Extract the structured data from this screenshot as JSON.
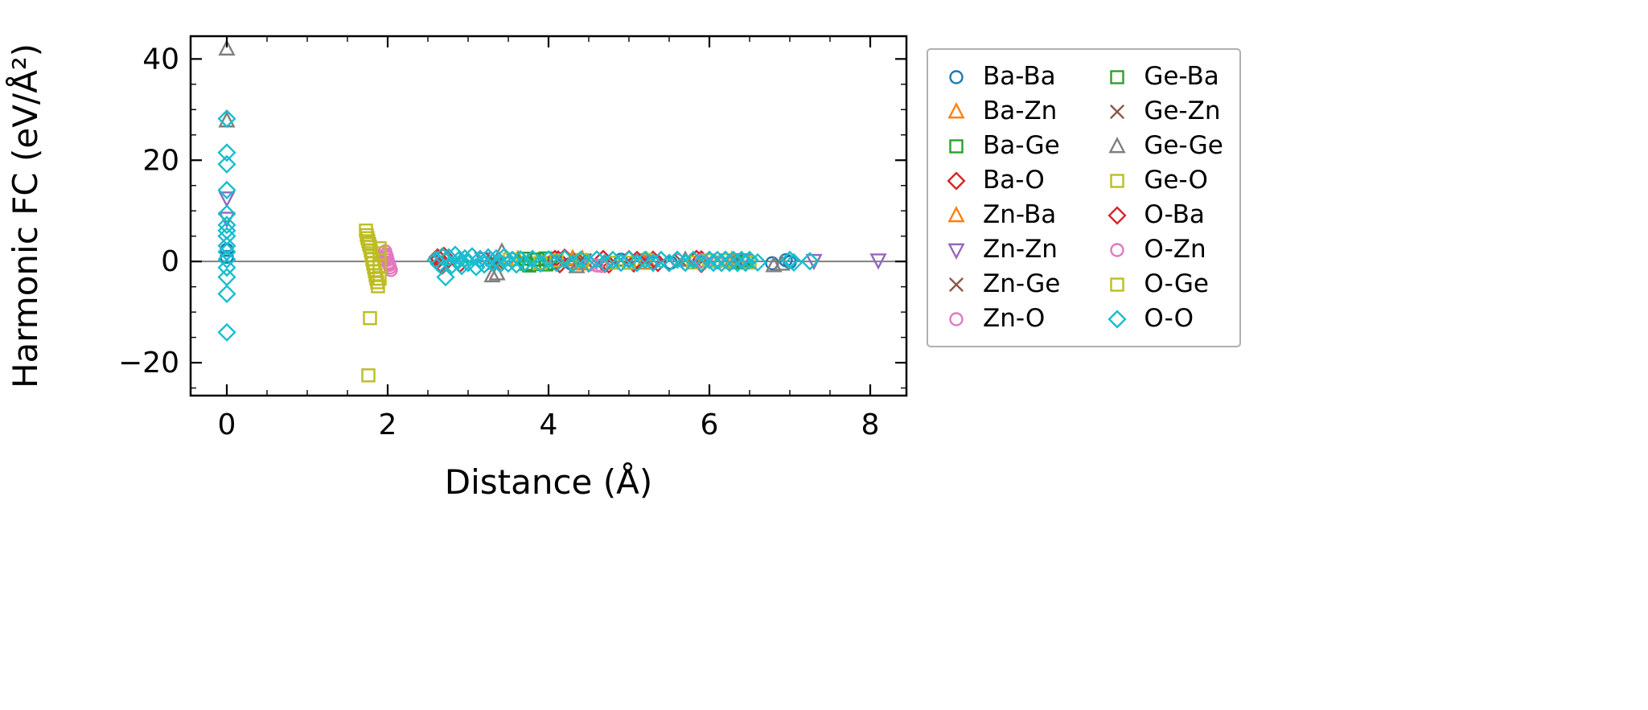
{
  "figure": {
    "background": "#ffffff",
    "axes_color": "#000000",
    "zero_line_color": "#808080",
    "legend_border_color": "#b0b0b0"
  },
  "chart_data": {
    "type": "scatter",
    "title": "",
    "xlabel": "Distance (Å)",
    "ylabel": "Harmonic FC (eV/Å²)",
    "xlim": [
      -0.45,
      8.45
    ],
    "ylim": [
      -26.5,
      44.5
    ],
    "xticks": [
      0,
      2,
      4,
      6,
      8
    ],
    "yticks": [
      -20,
      0,
      20,
      40
    ],
    "xticklabels": [
      "0",
      "2",
      "4",
      "6",
      "8"
    ],
    "yticklabels": [
      "−20",
      "0",
      "20",
      "40"
    ],
    "x_minor_step": 0.5,
    "y_minor_step": 5,
    "grid": false,
    "zero_line": true,
    "legend_position": "right",
    "legend_columns": 2,
    "series": [
      {
        "name": "Ba-Ba",
        "marker": "circle",
        "color": "#1f77b4",
        "points": [
          [
            0,
            2.3
          ],
          [
            0,
            0.9
          ],
          [
            4.28,
            -0.4
          ],
          [
            4.9,
            0.35
          ],
          [
            5.52,
            -0.25
          ],
          [
            6.2,
            0.3
          ],
          [
            6.78,
            -0.35
          ],
          [
            6.95,
            0.25
          ],
          [
            7.0,
            -0.15
          ]
        ]
      },
      {
        "name": "Ba-Zn",
        "marker": "triangle-up",
        "color": "#ff7f0e",
        "points": [
          [
            3.62,
            0.45
          ],
          [
            4.3,
            0.6
          ],
          [
            4.36,
            -0.45
          ],
          [
            4.42,
            0.5
          ],
          [
            5.18,
            -0.3
          ],
          [
            5.22,
            0.25
          ],
          [
            6.28,
            0.3
          ],
          [
            6.35,
            -0.25
          ]
        ]
      },
      {
        "name": "Ba-Ge",
        "marker": "square",
        "color": "#2ca02c",
        "points": [
          [
            3.7,
            0.55
          ],
          [
            3.76,
            -0.8
          ],
          [
            3.82,
            0.35
          ],
          [
            3.9,
            -0.5
          ],
          [
            3.96,
            0.6
          ],
          [
            4.02,
            -0.35
          ],
          [
            6.4,
            0.25
          ],
          [
            6.46,
            -0.2
          ]
        ]
      },
      {
        "name": "Ba-O",
        "marker": "diamond",
        "color": "#d62728",
        "points": [
          [
            2.62,
            0.8
          ],
          [
            2.66,
            -0.6
          ],
          [
            2.7,
            1.1
          ],
          [
            2.74,
            0.3
          ],
          [
            2.9,
            -0.45
          ],
          [
            4.08,
            0.5
          ],
          [
            4.14,
            -0.55
          ],
          [
            4.2,
            0.75
          ],
          [
            4.5,
            -0.4
          ],
          [
            4.68,
            0.5
          ],
          [
            4.75,
            -0.6
          ],
          [
            5.0,
            0.45
          ],
          [
            5.06,
            -0.4
          ],
          [
            5.3,
            0.35
          ],
          [
            5.5,
            -0.3
          ],
          [
            5.84,
            0.5
          ],
          [
            5.9,
            -0.5
          ],
          [
            6.0,
            0.3
          ]
        ]
      },
      {
        "name": "Zn-Ba",
        "marker": "triangle-up",
        "color": "#ff7f0e",
        "points": [
          [
            4.3,
            0.35
          ],
          [
            4.4,
            -0.3
          ],
          [
            5.2,
            0.2
          ],
          [
            6.3,
            -0.2
          ]
        ]
      },
      {
        "name": "Zn-Zn",
        "marker": "triangle-down",
        "color": "#9467bd",
        "points": [
          [
            0,
            12.5
          ],
          [
            0,
            8.5
          ],
          [
            3.18,
            0.5
          ],
          [
            5.3,
            -0.3
          ],
          [
            6.42,
            0.25
          ],
          [
            7.3,
            0.15
          ],
          [
            8.1,
            0.25
          ]
        ]
      },
      {
        "name": "Zn-Ge",
        "marker": "x",
        "color": "#8c564b",
        "points": [
          [
            3.3,
            0.4
          ],
          [
            3.36,
            -0.35
          ],
          [
            4.4,
            0.3
          ],
          [
            5.6,
            -0.25
          ],
          [
            6.3,
            0.2
          ]
        ]
      },
      {
        "name": "Zn-O",
        "marker": "circle",
        "color": "#e377c2",
        "points": [
          [
            1.97,
            2.0
          ],
          [
            1.98,
            1.4
          ],
          [
            1.99,
            0.8
          ],
          [
            2.0,
            0.3
          ],
          [
            2.01,
            -0.2
          ],
          [
            2.02,
            -0.7
          ],
          [
            2.03,
            -1.2
          ],
          [
            2.04,
            -1.7
          ],
          [
            4.6,
            -0.8
          ],
          [
            5.6,
            0.25
          ],
          [
            6.1,
            -0.2
          ]
        ]
      },
      {
        "name": "Ge-Ba",
        "marker": "square",
        "color": "#2ca02c",
        "points": [
          [
            3.72,
            -0.45
          ],
          [
            3.86,
            0.4
          ],
          [
            3.97,
            -0.6
          ],
          [
            6.42,
            -0.15
          ]
        ]
      },
      {
        "name": "Ge-Zn",
        "marker": "x",
        "color": "#8c564b",
        "points": [
          [
            3.32,
            -0.4
          ],
          [
            4.45,
            0.25
          ],
          [
            5.64,
            0.2
          ],
          [
            6.36,
            -0.2
          ]
        ]
      },
      {
        "name": "Ge-Ge",
        "marker": "triangle-up",
        "color": "#7f7f7f",
        "points": [
          [
            0,
            42.0
          ],
          [
            0,
            27.8
          ],
          [
            3.3,
            -2.8
          ],
          [
            3.36,
            -2.4
          ],
          [
            3.42,
            1.9
          ],
          [
            4.35,
            -1.0
          ],
          [
            5.7,
            0.3
          ],
          [
            6.8,
            -0.8
          ],
          [
            6.9,
            -0.5
          ]
        ]
      },
      {
        "name": "Ge-O",
        "marker": "square",
        "color": "#bcbd22",
        "points": [
          [
            1.73,
            6.1
          ],
          [
            1.74,
            5.2
          ],
          [
            1.75,
            4.6
          ],
          [
            1.76,
            4.0
          ],
          [
            1.77,
            3.4
          ],
          [
            1.78,
            2.9
          ],
          [
            1.79,
            2.1
          ],
          [
            1.8,
            1.2
          ],
          [
            1.81,
            0.4
          ],
          [
            1.82,
            -0.4
          ],
          [
            1.83,
            -1.1
          ],
          [
            1.84,
            -1.9
          ],
          [
            1.85,
            -2.7
          ],
          [
            1.86,
            -3.4
          ],
          [
            1.87,
            -4.1
          ],
          [
            1.88,
            -4.9
          ],
          [
            1.78,
            -11.2
          ],
          [
            1.76,
            -22.5
          ],
          [
            3.52,
            0.4
          ],
          [
            3.9,
            -0.3
          ],
          [
            4.42,
            0.3
          ],
          [
            4.8,
            -0.25
          ],
          [
            5.2,
            0.3
          ],
          [
            5.8,
            -0.2
          ],
          [
            6.2,
            0.25
          ],
          [
            6.5,
            -0.2
          ]
        ]
      },
      {
        "name": "O-Ba",
        "marker": "diamond",
        "color": "#d62728",
        "points": [
          [
            2.64,
            0.5
          ],
          [
            2.68,
            -0.8
          ],
          [
            4.12,
            0.4
          ],
          [
            4.7,
            -0.5
          ],
          [
            5.1,
            0.3
          ],
          [
            5.36,
            -0.3
          ],
          [
            5.9,
            0.4
          ]
        ]
      },
      {
        "name": "O-Zn",
        "marker": "circle",
        "color": "#e377c2",
        "points": [
          [
            1.99,
            1.0
          ],
          [
            2.01,
            -0.5
          ],
          [
            4.52,
            -0.6
          ],
          [
            4.66,
            -0.9
          ],
          [
            5.9,
            0.2
          ]
        ]
      },
      {
        "name": "O-Ge",
        "marker": "square",
        "color": "#bcbd22",
        "points": [
          [
            1.9,
            2.6
          ],
          [
            1.9,
            1.6
          ],
          [
            1.9,
            -0.9
          ],
          [
            1.9,
            -3.4
          ],
          [
            4.1,
            0.2
          ],
          [
            5.0,
            -0.25
          ],
          [
            6.0,
            0.2
          ]
        ]
      },
      {
        "name": "O-O",
        "marker": "diamond",
        "color": "#17becf",
        "points": [
          [
            0,
            28.2
          ],
          [
            0,
            21.5
          ],
          [
            0,
            19.2
          ],
          [
            0,
            14.1
          ],
          [
            0,
            9.4
          ],
          [
            0,
            7.2
          ],
          [
            0,
            6.1
          ],
          [
            0,
            5.0
          ],
          [
            0,
            3.1
          ],
          [
            0,
            1.9
          ],
          [
            0,
            0.4
          ],
          [
            0,
            -1.2
          ],
          [
            0,
            -3.1
          ],
          [
            0,
            -6.4
          ],
          [
            0,
            -14.0
          ],
          [
            2.6,
            0.3
          ],
          [
            2.64,
            -0.5
          ],
          [
            2.68,
            1.0
          ],
          [
            2.72,
            -3.1
          ],
          [
            2.76,
            0.8
          ],
          [
            2.8,
            -0.7
          ],
          [
            2.84,
            1.3
          ],
          [
            2.88,
            0.2
          ],
          [
            2.92,
            -0.9
          ],
          [
            2.96,
            0.6
          ],
          [
            3.0,
            -0.3
          ],
          [
            3.05,
            1.0
          ],
          [
            3.1,
            -1.1
          ],
          [
            3.15,
            0.5
          ],
          [
            3.2,
            -0.6
          ],
          [
            3.25,
            0.8
          ],
          [
            3.3,
            -0.2
          ],
          [
            3.35,
            0.6
          ],
          [
            3.4,
            -0.5
          ],
          [
            3.45,
            0.9
          ],
          [
            3.5,
            -0.4
          ],
          [
            3.55,
            0.3
          ],
          [
            3.6,
            -0.6
          ],
          [
            3.65,
            0.4
          ],
          [
            3.7,
            -0.3
          ],
          [
            3.8,
            0.5
          ],
          [
            3.9,
            -0.4
          ],
          [
            4.0,
            0.4
          ],
          [
            4.1,
            -0.3
          ],
          [
            4.2,
            0.5
          ],
          [
            4.3,
            -0.4
          ],
          [
            4.4,
            0.3
          ],
          [
            4.5,
            -0.3
          ],
          [
            4.6,
            0.4
          ],
          [
            4.7,
            -0.3
          ],
          [
            4.8,
            0.3
          ],
          [
            4.9,
            -0.25
          ],
          [
            5.0,
            0.35
          ],
          [
            5.1,
            -0.3
          ],
          [
            5.2,
            0.3
          ],
          [
            5.3,
            -0.25
          ],
          [
            5.4,
            0.3
          ],
          [
            5.5,
            -0.3
          ],
          [
            5.6,
            0.35
          ],
          [
            5.7,
            -0.25
          ],
          [
            5.8,
            0.3
          ],
          [
            5.9,
            -0.3
          ],
          [
            6.0,
            0.3
          ],
          [
            6.05,
            -0.25
          ],
          [
            6.1,
            0.3
          ],
          [
            6.15,
            -0.3
          ],
          [
            6.2,
            0.35
          ],
          [
            6.25,
            -0.25
          ],
          [
            6.3,
            0.3
          ],
          [
            6.35,
            -0.3
          ],
          [
            6.4,
            0.3
          ],
          [
            6.45,
            -0.25
          ],
          [
            6.5,
            0.3
          ],
          [
            6.6,
            -0.2
          ],
          [
            7.0,
            0.3
          ],
          [
            7.05,
            -0.2
          ],
          [
            7.25,
            0.05
          ]
        ]
      }
    ]
  }
}
